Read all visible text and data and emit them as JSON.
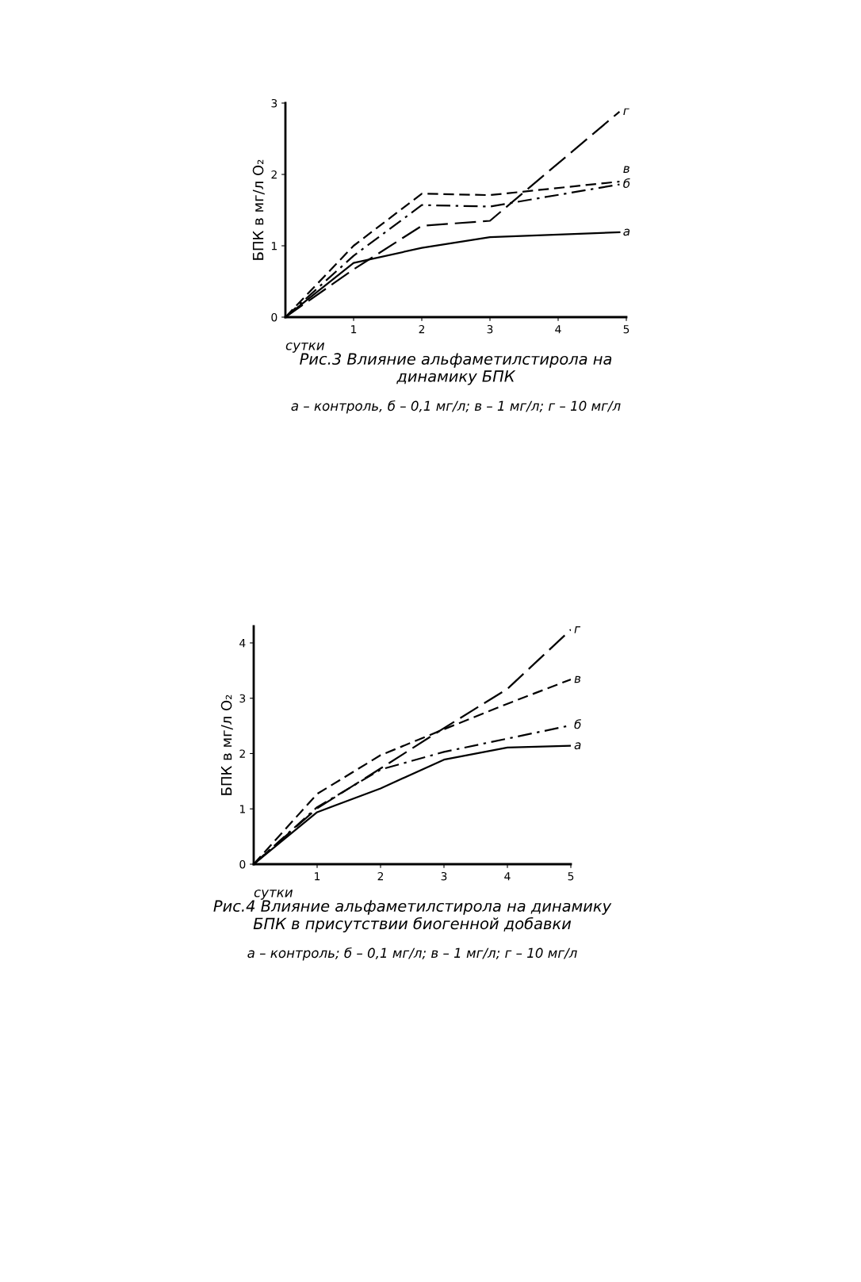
{
  "chart_data": [
    {
      "type": "line",
      "title": "Рис.3 Влияние альфаметилстирола на\nдинамику БПК",
      "subtitle": "а – контроль, б – 0,1 мг/л; в – 1 мг/л; г – 10 мг/л",
      "xlabel": "сутки",
      "ylabel": "БПК в мг/л O₂",
      "xlim": [
        0,
        5
      ],
      "ylim": [
        0,
        3
      ],
      "xticks": [
        1,
        2,
        3,
        4,
        5
      ],
      "yticks": [
        0,
        1,
        2,
        3
      ],
      "grid": false,
      "legend": false,
      "series": [
        {
          "name": "а",
          "color": "#000000",
          "line_style": "solid",
          "x": [
            0,
            1,
            2,
            3,
            4.9
          ],
          "values": [
            0,
            0.76,
            0.97,
            1.12,
            1.19
          ]
        },
        {
          "name": "б",
          "color": "#000000",
          "line_style": "dashdot",
          "x": [
            0,
            1,
            2,
            3,
            4.9
          ],
          "values": [
            0,
            0.86,
            1.57,
            1.55,
            1.86
          ]
        },
        {
          "name": "в",
          "color": "#000000",
          "line_style": "dashed",
          "x": [
            0,
            1,
            2,
            3,
            4.9
          ],
          "values": [
            0,
            1.0,
            1.73,
            1.71,
            1.9
          ]
        },
        {
          "name": "г",
          "color": "#000000",
          "line_style": "longdash",
          "x": [
            0,
            1,
            2,
            3,
            4.9
          ],
          "values": [
            0,
            0.67,
            1.28,
            1.35,
            2.88
          ]
        }
      ]
    },
    {
      "type": "line",
      "title": "Рис.4 Влияние альфаметилстирола на динамику\nБПК в присутствии биогенной добавки",
      "subtitle": "а – контроль; б – 0,1 мг/л; в – 1 мг/л; г – 10 мг/л",
      "xlabel": "сутки",
      "ylabel": "БПК в мг/л O₂",
      "xlim": [
        0,
        5
      ],
      "ylim": [
        0,
        4.3
      ],
      "xticks": [
        1,
        2,
        3,
        4,
        5
      ],
      "yticks": [
        0,
        1,
        2,
        3,
        4
      ],
      "grid": false,
      "legend": false,
      "series": [
        {
          "name": "а",
          "color": "#000000",
          "line_style": "solid",
          "x": [
            0,
            1,
            2,
            3,
            4,
            5
          ],
          "values": [
            0,
            0.94,
            1.37,
            1.89,
            2.11,
            2.14
          ]
        },
        {
          "name": "б",
          "color": "#000000",
          "line_style": "dashdot",
          "x": [
            0,
            1,
            2,
            3,
            4,
            5
          ],
          "values": [
            0,
            1.03,
            1.71,
            2.03,
            2.27,
            2.51
          ]
        },
        {
          "name": "в",
          "color": "#000000",
          "line_style": "dashed",
          "x": [
            0,
            1,
            2,
            3,
            4,
            5
          ],
          "values": [
            0,
            1.27,
            1.97,
            2.44,
            2.9,
            3.34
          ]
        },
        {
          "name": "г",
          "color": "#000000",
          "line_style": "longdash",
          "x": [
            0,
            1,
            2,
            3,
            4,
            5
          ],
          "values": [
            0,
            1.01,
            1.73,
            2.46,
            3.17,
            4.24
          ]
        }
      ]
    }
  ]
}
